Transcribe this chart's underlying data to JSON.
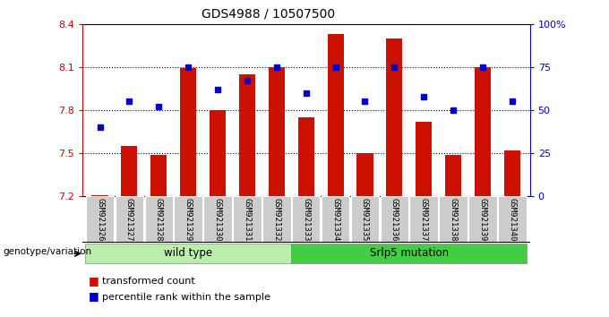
{
  "title": "GDS4988 / 10507500",
  "samples": [
    "GSM921326",
    "GSM921327",
    "GSM921328",
    "GSM921329",
    "GSM921330",
    "GSM921331",
    "GSM921332",
    "GSM921333",
    "GSM921334",
    "GSM921335",
    "GSM921336",
    "GSM921337",
    "GSM921338",
    "GSM921339",
    "GSM921340"
  ],
  "bar_values": [
    7.21,
    7.55,
    7.49,
    8.09,
    7.8,
    8.05,
    8.1,
    7.75,
    8.33,
    7.5,
    8.3,
    7.72,
    7.49,
    8.1,
    7.52
  ],
  "dot_pct": [
    40,
    55,
    52,
    75,
    62,
    67,
    75,
    60,
    75,
    55,
    75,
    58,
    50,
    75,
    55
  ],
  "ylim": [
    7.2,
    8.4
  ],
  "yticks": [
    7.2,
    7.5,
    7.8,
    8.1,
    8.4
  ],
  "right_yticks": [
    0,
    25,
    50,
    75,
    100
  ],
  "right_ytick_labels": [
    "0",
    "25",
    "50",
    "75",
    "100%"
  ],
  "bar_color": "#cc1100",
  "dot_color": "#0000cc",
  "bar_width": 0.55,
  "wild_type_count": 7,
  "wild_type_label": "wild type",
  "mutation_label": "Srlp5 mutation",
  "genotype_label": "genotype/variation",
  "legend_bar": "transformed count",
  "legend_dot": "percentile rank within the sample",
  "sample_bg_color": "#cccccc",
  "wild_bg": "#bbeeaa",
  "mut_bg": "#44cc44"
}
